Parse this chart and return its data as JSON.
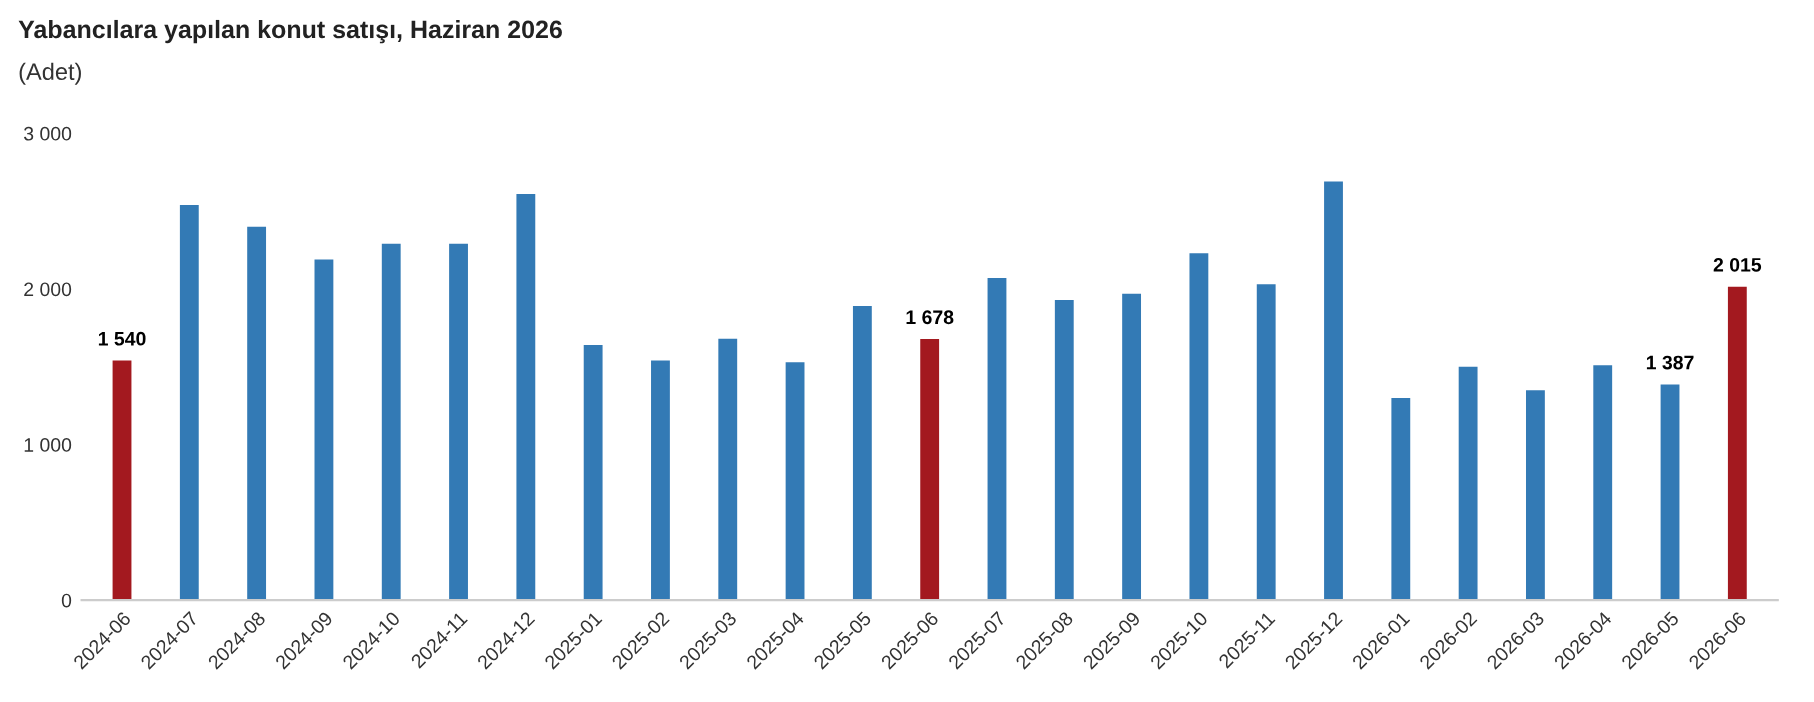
{
  "chart_data": {
    "type": "bar",
    "title": "Yabancılara yapılan konut satışı, Haziran 2026",
    "subtitle": "(Adet)",
    "categories": [
      "2024-06",
      "2024-07",
      "2024-08",
      "2024-09",
      "2024-10",
      "2024-11",
      "2024-12",
      "2025-01",
      "2025-02",
      "2025-03",
      "2025-04",
      "2025-05",
      "2025-06",
      "2025-07",
      "2025-08",
      "2025-09",
      "2025-10",
      "2025-11",
      "2025-12",
      "2026-01",
      "2026-02",
      "2026-03",
      "2026-04",
      "2026-05",
      "2026-06"
    ],
    "values": [
      1540,
      2540,
      2400,
      2190,
      2290,
      2290,
      2610,
      1640,
      1540,
      1680,
      1530,
      1890,
      1678,
      2070,
      1930,
      1970,
      2230,
      2030,
      2690,
      1300,
      1500,
      1350,
      1510,
      1387,
      2015
    ],
    "value_labels": [
      "1 540",
      null,
      null,
      null,
      null,
      null,
      null,
      null,
      null,
      null,
      null,
      null,
      "1 678",
      null,
      null,
      null,
      null,
      null,
      null,
      null,
      null,
      null,
      null,
      "1 387",
      "2 015"
    ],
    "colors": [
      "#a3191f",
      "#337ab5",
      "#337ab5",
      "#337ab5",
      "#337ab5",
      "#337ab5",
      "#337ab5",
      "#337ab5",
      "#337ab5",
      "#337ab5",
      "#337ab5",
      "#337ab5",
      "#a3191f",
      "#337ab5",
      "#337ab5",
      "#337ab5",
      "#337ab5",
      "#337ab5",
      "#337ab5",
      "#337ab5",
      "#337ab5",
      "#337ab5",
      "#337ab5",
      "#337ab5",
      "#a3191f"
    ],
    "ylim": [
      0,
      3000
    ],
    "yticks": [
      {
        "value": 0,
        "label": "0"
      },
      {
        "value": 1000,
        "label": "1 000"
      },
      {
        "value": 2000,
        "label": "2 000"
      },
      {
        "value": 3000,
        "label": "3 000"
      }
    ],
    "grid": false,
    "legend": false
  }
}
